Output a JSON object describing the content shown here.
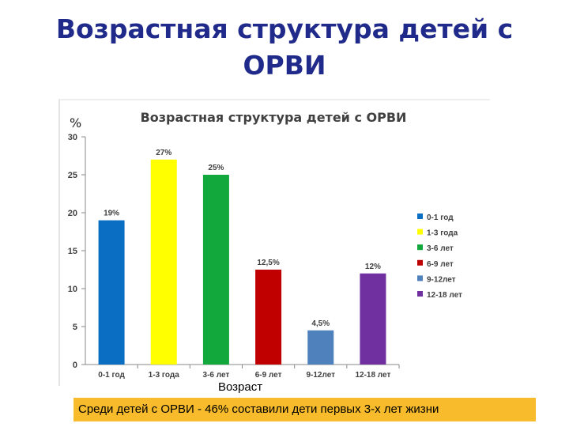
{
  "slide": {
    "title_line1": "Возрастная структура детей с",
    "title_line2": "ОРВИ",
    "y_unit": "%",
    "x_caption": "Возраст",
    "note": "Среди детей с ОРВИ - 46% составили дети первых  3-х лет жизни"
  },
  "chart_data": {
    "type": "bar",
    "title": "Возрастная структура детей с ОРВИ",
    "categories": [
      "0-1 год",
      "1-3 года",
      "3-6 лет",
      "6-9 лет",
      "9-12лет",
      "12-18 лет"
    ],
    "values": [
      19,
      27,
      25,
      12.5,
      4.5,
      12
    ],
    "data_labels": [
      "19%",
      "27%",
      "25%",
      "12,5%",
      "4,5%",
      "12%"
    ],
    "legend_labels": [
      "0-1 год",
      "1-3 года",
      "3-6 лет",
      "6-9 лет",
      "9-12лет",
      "12-18 лет"
    ],
    "colors": [
      "#0a6fc2",
      "#ffff00",
      "#12a83c",
      "#c00000",
      "#4f81bd",
      "#7030a0"
    ],
    "ylim": [
      0,
      30
    ],
    "yticks": [
      0,
      5,
      10,
      15,
      20,
      25,
      30
    ],
    "legend_position": "right",
    "grid": false
  }
}
